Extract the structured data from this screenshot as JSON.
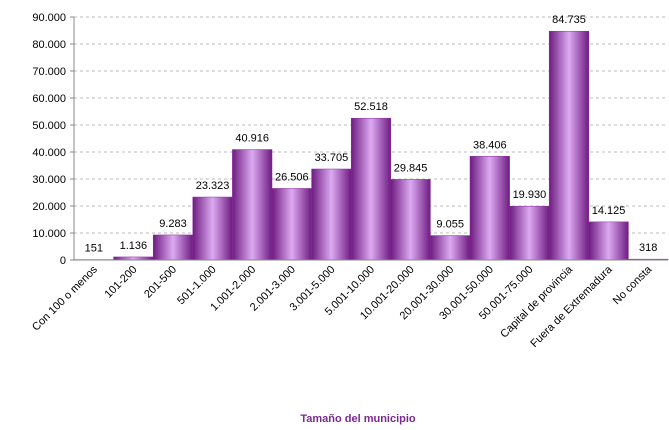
{
  "chart_data": {
    "type": "bar",
    "x_label": "Tamaño del municipio",
    "categories": [
      "Con 100 o menos",
      "101-200",
      "201-500",
      "501-1.000",
      "1.001-2.000",
      "2.001-3.000",
      "3.001-5.000",
      "5.001-10.000",
      "10.001-20.000",
      "20.001-30.000",
      "30.001-50.000",
      "50.001-75.000",
      "Capital de provincia",
      "Fuera de Extremadura",
      "No consta"
    ],
    "values": [
      151,
      1136,
      9283,
      23323,
      40916,
      26506,
      33705,
      52518,
      29845,
      9055,
      38406,
      19930,
      84735,
      14125,
      318
    ],
    "value_labels": [
      "151",
      "1.136",
      "9.283",
      "23.323",
      "40.916",
      "26.506",
      "33.705",
      "52.518",
      "29.845",
      "9.055",
      "38.406",
      "19.930",
      "84.735",
      "14.125",
      "318"
    ],
    "color": "#8a2c9c",
    "ylim": [
      0,
      90000
    ],
    "yticks": [
      0,
      {
        "value": 10000,
        "label": "10.000"
      },
      {
        "value": 20000,
        "label": "20.000"
      },
      {
        "value": 30000,
        "label": "30.000"
      },
      {
        "value": 40000,
        "label": "40.000"
      },
      {
        "value": 50000,
        "label": "50.000"
      },
      {
        "value": 60000,
        "label": "60.000"
      },
      {
        "value": 70000,
        "label": "70.000"
      },
      {
        "value": 80000,
        "label": "80.000"
      },
      {
        "value": 90000,
        "label": "90.000"
      }
    ],
    "grid": true
  }
}
